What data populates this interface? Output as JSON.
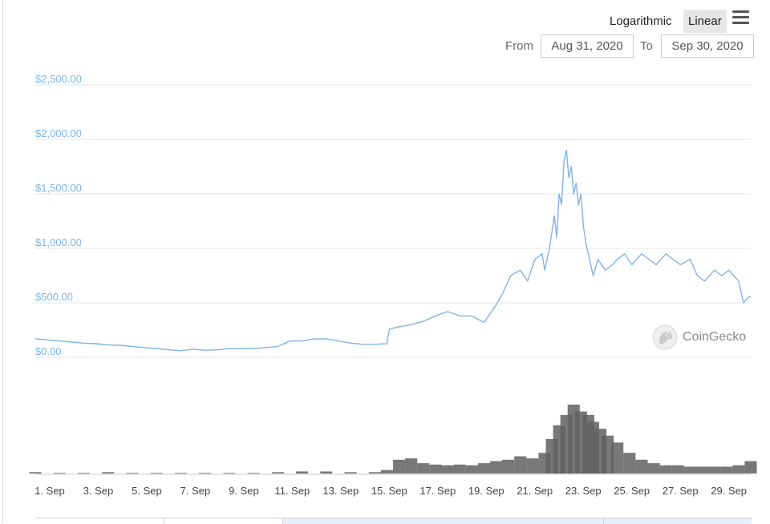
{
  "toolbar": {
    "scale_options": [
      "Logarithmic",
      "Linear"
    ],
    "selected_scale": "Linear",
    "menu_icon": "hamburger-menu-icon"
  },
  "range": {
    "from_label": "From",
    "from_value": "Aug 31, 2020",
    "to_label": "To",
    "to_value": "Sep 30, 2020"
  },
  "watermark": {
    "text": "CoinGecko",
    "icon": "gecko-logo-icon"
  },
  "colors": {
    "price_line": "#7cb5ec",
    "volume": "#606060",
    "grid": "#e6e6e6",
    "axis_text": "#7cb5ec"
  },
  "chart_data": {
    "type": "line",
    "y_scale": "linear",
    "ylim": [
      0,
      2500
    ],
    "y_ticks": [
      0,
      500,
      1000,
      1500,
      2000,
      2500
    ],
    "y_tick_labels": [
      "$0.00",
      "$500.00",
      "$1,000.00",
      "$1,500.00",
      "$2,000.00",
      "$2,500.00"
    ],
    "xlim": [
      1,
      30.5
    ],
    "x_ticks": [
      1,
      3,
      5,
      7,
      9,
      11,
      13,
      15,
      17,
      19,
      21,
      23,
      25,
      27,
      29
    ],
    "x_tick_labels": [
      "1. Sep",
      "3. Sep",
      "5. Sep",
      "7. Sep",
      "9. Sep",
      "11. Sep",
      "13. Sep",
      "15. Sep",
      "17. Sep",
      "19. Sep",
      "21. Sep",
      "23. Sep",
      "25. Sep",
      "27. Sep",
      "29. Sep"
    ],
    "grid": true,
    "series": [
      {
        "type": "line",
        "x": [
          1,
          1.5,
          2,
          2.5,
          3,
          3.5,
          4,
          4.5,
          5,
          5.5,
          6,
          6.5,
          7,
          7.5,
          8,
          8.5,
          9,
          9.5,
          10,
          10.5,
          11,
          11.5,
          12,
          12.5,
          13,
          13.5,
          14,
          14.5,
          15,
          15.5,
          15.6,
          16,
          16.5,
          17,
          17.5,
          18,
          18.5,
          19,
          19.5,
          20,
          20.3,
          20.6,
          21,
          21.3,
          21.6,
          21.9,
          22,
          22.2,
          22.4,
          22.5,
          22.6,
          22.7,
          22.8,
          22.9,
          23,
          23.1,
          23.2,
          23.3,
          23.4,
          23.5,
          23.6,
          23.7,
          24,
          24.2,
          24.5,
          24.8,
          25,
          25.3,
          25.6,
          26,
          26.3,
          26.6,
          27,
          27.3,
          27.6,
          28,
          28.3,
          28.6,
          29,
          29.3,
          29.6,
          30,
          30.2,
          30.4,
          30.5
        ],
        "y": [
          170,
          160,
          150,
          140,
          130,
          125,
          115,
          110,
          100,
          90,
          80,
          70,
          60,
          75,
          65,
          70,
          80,
          80,
          80,
          90,
          100,
          150,
          150,
          170,
          170,
          150,
          130,
          120,
          120,
          125,
          260,
          280,
          300,
          330,
          380,
          420,
          380,
          380,
          320,
          480,
          600,
          750,
          800,
          700,
          900,
          950,
          800,
          1000,
          1300,
          1100,
          1500,
          1400,
          1800,
          1900,
          1650,
          1750,
          1500,
          1600,
          1400,
          1500,
          1200,
          1050,
          750,
          900,
          800,
          850,
          900,
          950,
          850,
          950,
          900,
          850,
          950,
          900,
          850,
          900,
          750,
          700,
          800,
          750,
          800,
          700,
          500,
          550,
          560
        ]
      },
      {
        "type": "column",
        "name": "volume",
        "x": [
          1,
          2,
          3,
          4,
          5,
          6,
          7,
          8,
          9,
          10,
          11,
          12,
          13,
          14,
          15,
          15.5,
          16,
          16.5,
          17,
          17.5,
          18,
          18.5,
          19,
          19.5,
          20,
          20.5,
          21,
          21.5,
          22,
          22.3,
          22.6,
          22.9,
          23.2,
          23.5,
          23.8,
          24,
          24.3,
          24.6,
          25,
          25.5,
          26,
          26.5,
          27,
          27.5,
          28,
          28.5,
          29,
          29.5,
          30,
          30.5
        ],
        "y": [
          0.02,
          0.01,
          0.01,
          0.02,
          0.01,
          0.01,
          0.01,
          0.01,
          0.01,
          0.01,
          0.02,
          0.03,
          0.03,
          0.02,
          0.02,
          0.05,
          0.2,
          0.22,
          0.15,
          0.13,
          0.12,
          0.13,
          0.12,
          0.15,
          0.18,
          0.2,
          0.25,
          0.22,
          0.3,
          0.5,
          0.7,
          0.85,
          1.0,
          0.9,
          0.85,
          0.75,
          0.65,
          0.55,
          0.45,
          0.3,
          0.2,
          0.15,
          0.12,
          0.12,
          0.1,
          0.1,
          0.1,
          0.1,
          0.12,
          0.18
        ]
      }
    ]
  }
}
